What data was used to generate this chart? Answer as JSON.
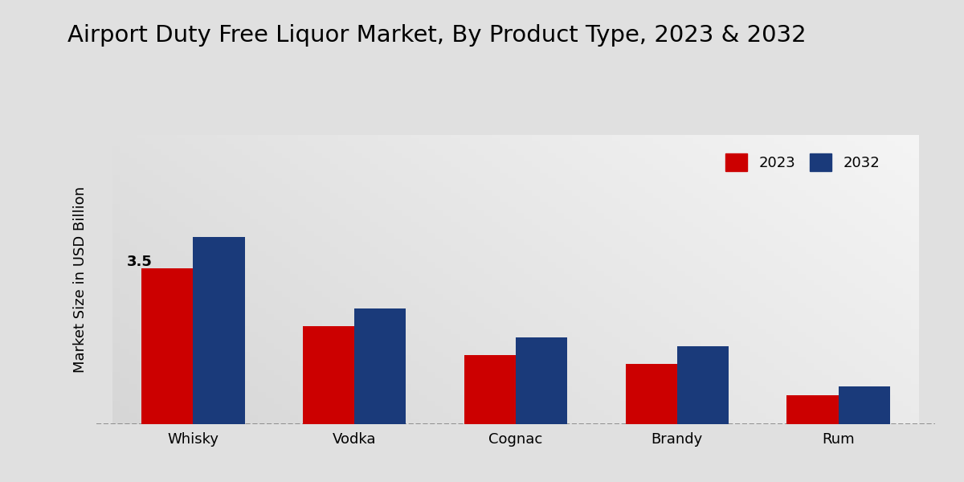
{
  "title": "Airport Duty Free Liquor Market, By Product Type, 2023 & 2032",
  "categories": [
    "Whisky",
    "Vodka",
    "Cognac",
    "Brandy",
    "Rum"
  ],
  "values_2023": [
    3.5,
    2.2,
    1.55,
    1.35,
    0.65
  ],
  "values_2032": [
    4.2,
    2.6,
    1.95,
    1.75,
    0.85
  ],
  "color_2023": "#cc0000",
  "color_2032": "#1a3a7a",
  "ylabel": "Market Size in USD Billion",
  "legend_labels": [
    "2023",
    "2032"
  ],
  "annotation_text": "3.5",
  "bar_width": 0.32,
  "title_fontsize": 21,
  "axis_label_fontsize": 13,
  "tick_fontsize": 13,
  "legend_fontsize": 13,
  "ylim": [
    0,
    6.5
  ],
  "bg_light": "#f0f0f0",
  "bg_dark": "#c8c8c8"
}
